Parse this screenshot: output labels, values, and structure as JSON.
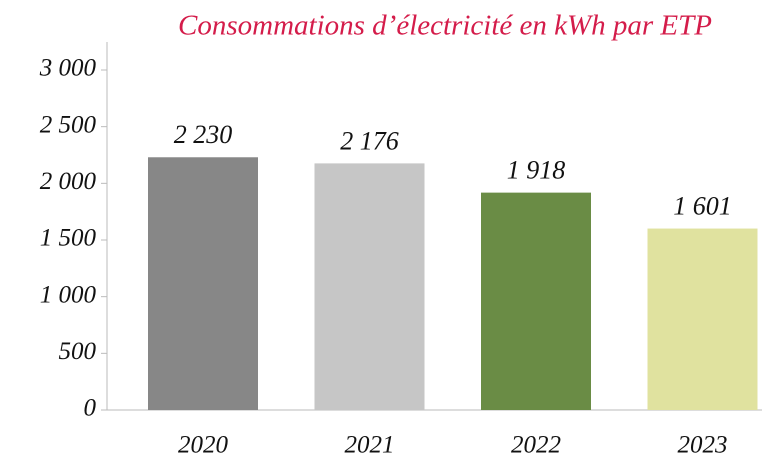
{
  "chart_data": {
    "type": "bar",
    "title": "Consommations d’électricité en kWh par ETP",
    "categories": [
      "2020",
      "2021",
      "2022",
      "2023"
    ],
    "values": [
      2230,
      2176,
      1918,
      1601
    ],
    "value_labels": [
      "2 230",
      "2 176",
      "1 918",
      "1 601"
    ],
    "colors": [
      "#878787",
      "#c6c6c6",
      "#6a8c45",
      "#e0e29f"
    ],
    "ylim": [
      0,
      3000
    ],
    "yticks": [
      0,
      500,
      {
        "value": 1000,
        "label": "1 000"
      },
      {
        "value": 1500,
        "label": "1 500"
      },
      {
        "value": 2000,
        "label": "2 000"
      },
      {
        "value": 2500,
        "label": "2 500"
      },
      {
        "value": 3000,
        "label": "3 000"
      }
    ],
    "grid": false
  }
}
